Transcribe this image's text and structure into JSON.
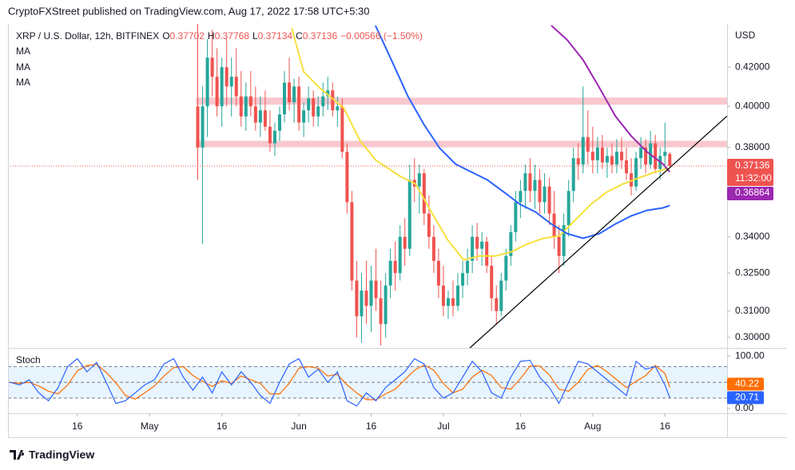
{
  "header": {
    "publisher": "CryptoFXStreet published on TradingView.com, Aug 17, 2022 17:58 UTC+5:30"
  },
  "footer": {
    "brand": "TradingView"
  },
  "chart_data": {
    "type": "candlestick",
    "title": "XRP / U.S. Dollar, 12h, BITFINEX",
    "quote": [
      {
        "label": "O",
        "value": "0.37702"
      },
      {
        "label": "H",
        "value": "0.37768"
      },
      {
        "label": "L",
        "value": "0.37134"
      },
      {
        "label": "C",
        "value": "0.37136"
      }
    ],
    "change": "−0.00566 (−1.50%)",
    "currency": "USD",
    "countdown": "11:32:00",
    "log_scale": true,
    "up_color": "#26a69a",
    "down_color": "#ef5350",
    "xlim": [
      1.6,
      150.9
    ],
    "xticks": [
      16,
      {
        "value": 31,
        "label": "May"
      },
      {
        "value": 46,
        "label": "16"
      },
      {
        "value": 62,
        "label": "Jun"
      },
      {
        "value": 77,
        "label": "16"
      },
      {
        "value": 92,
        "label": "Jul"
      },
      {
        "value": 108,
        "label": "16"
      },
      {
        "value": 123,
        "label": "Aug"
      },
      {
        "value": 138,
        "label": "16"
      }
    ],
    "ylim": [
      0.2961,
      0.4432
    ],
    "yticks": [
      {
        "value": 0.42,
        "label": "0.42000"
      },
      {
        "value": 0.4,
        "label": "0.40000"
      },
      {
        "value": 0.38,
        "label": "0.38000"
      },
      {
        "value": 0.34,
        "label": "0.34000"
      },
      {
        "value": 0.325,
        "label": "0.32500"
      },
      {
        "value": 0.31,
        "label": "0.31000"
      },
      {
        "value": 0.3,
        "label": "0.30000"
      }
    ],
    "x": [
      41,
      42,
      43,
      44,
      45,
      46,
      47,
      48,
      49,
      50,
      51,
      52,
      53,
      54,
      55,
      56,
      57,
      58,
      59,
      60,
      61,
      62,
      63,
      64,
      65,
      66,
      67,
      68,
      69,
      70,
      71,
      72,
      73,
      74,
      75,
      76,
      77,
      78,
      79,
      80,
      81,
      82,
      83,
      84,
      85,
      86,
      87,
      88,
      89,
      90,
      91,
      92,
      93,
      94,
      95,
      96,
      97,
      98,
      99,
      100,
      101,
      102,
      103,
      104,
      105,
      106,
      107,
      108,
      109,
      110,
      111,
      112,
      113,
      114,
      115,
      116,
      117,
      118,
      119,
      120,
      121,
      122,
      123,
      124,
      125,
      126,
      127,
      128,
      129,
      130,
      131,
      132,
      133,
      134,
      135,
      136,
      137,
      138,
      139
    ],
    "ohlc": [
      [
        0.4,
        0.445,
        0.365,
        0.38
      ],
      [
        0.38,
        0.41,
        0.337,
        0.4
      ],
      [
        0.4,
        0.435,
        0.385,
        0.425
      ],
      [
        0.425,
        0.44,
        0.405,
        0.415
      ],
      [
        0.415,
        0.43,
        0.395,
        0.4
      ],
      [
        0.4,
        0.425,
        0.39,
        0.42
      ],
      [
        0.42,
        0.435,
        0.4,
        0.41
      ],
      [
        0.41,
        0.425,
        0.395,
        0.415
      ],
      [
        0.415,
        0.43,
        0.4,
        0.405
      ],
      [
        0.405,
        0.418,
        0.39,
        0.395
      ],
      [
        0.395,
        0.412,
        0.388,
        0.405
      ],
      [
        0.405,
        0.418,
        0.395,
        0.4
      ],
      [
        0.4,
        0.41,
        0.388,
        0.392
      ],
      [
        0.392,
        0.405,
        0.385,
        0.398
      ],
      [
        0.398,
        0.408,
        0.388,
        0.39
      ],
      [
        0.39,
        0.398,
        0.378,
        0.382
      ],
      [
        0.382,
        0.392,
        0.376,
        0.388
      ],
      [
        0.388,
        0.4,
        0.383,
        0.396
      ],
      [
        0.396,
        0.418,
        0.392,
        0.412
      ],
      [
        0.412,
        0.425,
        0.398,
        0.402
      ],
      [
        0.402,
        0.414,
        0.392,
        0.41
      ],
      [
        0.41,
        0.415,
        0.388,
        0.392
      ],
      [
        0.392,
        0.402,
        0.385,
        0.398
      ],
      [
        0.398,
        0.41,
        0.392,
        0.404
      ],
      [
        0.404,
        0.408,
        0.39,
        0.395
      ],
      [
        0.395,
        0.405,
        0.39,
        0.4
      ],
      [
        0.4,
        0.412,
        0.395,
        0.405
      ],
      [
        0.405,
        0.415,
        0.398,
        0.408
      ],
      [
        0.408,
        0.412,
        0.395,
        0.398
      ],
      [
        0.398,
        0.405,
        0.39,
        0.4
      ],
      [
        0.4,
        0.404,
        0.375,
        0.378
      ],
      [
        0.378,
        0.382,
        0.35,
        0.355
      ],
      [
        0.355,
        0.36,
        0.318,
        0.322
      ],
      [
        0.322,
        0.33,
        0.3,
        0.308
      ],
      [
        0.308,
        0.325,
        0.298,
        0.318
      ],
      [
        0.318,
        0.33,
        0.305,
        0.312
      ],
      [
        0.312,
        0.328,
        0.302,
        0.322
      ],
      [
        0.322,
        0.335,
        0.31,
        0.315
      ],
      [
        0.315,
        0.322,
        0.297,
        0.305
      ],
      [
        0.305,
        0.325,
        0.3,
        0.32
      ],
      [
        0.32,
        0.335,
        0.315,
        0.33
      ],
      [
        0.33,
        0.338,
        0.318,
        0.325
      ],
      [
        0.325,
        0.345,
        0.322,
        0.34
      ],
      [
        0.34,
        0.348,
        0.328,
        0.335
      ],
      [
        0.335,
        0.372,
        0.332,
        0.365
      ],
      [
        0.365,
        0.375,
        0.355,
        0.362
      ],
      [
        0.362,
        0.372,
        0.35,
        0.368
      ],
      [
        0.368,
        0.37,
        0.345,
        0.35
      ],
      [
        0.35,
        0.358,
        0.335,
        0.34
      ],
      [
        0.34,
        0.345,
        0.325,
        0.33
      ],
      [
        0.33,
        0.335,
        0.315,
        0.32
      ],
      [
        0.32,
        0.328,
        0.308,
        0.312
      ],
      [
        0.312,
        0.318,
        0.307,
        0.315
      ],
      [
        0.315,
        0.322,
        0.308,
        0.312
      ],
      [
        0.312,
        0.325,
        0.31,
        0.32
      ],
      [
        0.32,
        0.33,
        0.315,
        0.325
      ],
      [
        0.325,
        0.335,
        0.32,
        0.33
      ],
      [
        0.33,
        0.345,
        0.325,
        0.34
      ],
      [
        0.34,
        0.346,
        0.33,
        0.335
      ],
      [
        0.335,
        0.342,
        0.328,
        0.338
      ],
      [
        0.338,
        0.34,
        0.325,
        0.328
      ],
      [
        0.328,
        0.332,
        0.31,
        0.315
      ],
      [
        0.315,
        0.32,
        0.305,
        0.31
      ],
      [
        0.31,
        0.325,
        0.308,
        0.322
      ],
      [
        0.322,
        0.335,
        0.318,
        0.332
      ],
      [
        0.332,
        0.345,
        0.328,
        0.342
      ],
      [
        0.342,
        0.36,
        0.338,
        0.355
      ],
      [
        0.355,
        0.365,
        0.348,
        0.36
      ],
      [
        0.36,
        0.372,
        0.352,
        0.368
      ],
      [
        0.368,
        0.375,
        0.355,
        0.36
      ],
      [
        0.36,
        0.372,
        0.352,
        0.365
      ],
      [
        0.365,
        0.37,
        0.35,
        0.355
      ],
      [
        0.355,
        0.368,
        0.35,
        0.362
      ],
      [
        0.362,
        0.366,
        0.345,
        0.35
      ],
      [
        0.35,
        0.36,
        0.335,
        0.34
      ],
      [
        0.34,
        0.345,
        0.325,
        0.332
      ],
      [
        0.332,
        0.35,
        0.328,
        0.345
      ],
      [
        0.345,
        0.365,
        0.34,
        0.36
      ],
      [
        0.36,
        0.38,
        0.355,
        0.375
      ],
      [
        0.375,
        0.382,
        0.365,
        0.372
      ],
      [
        0.372,
        0.41,
        0.368,
        0.385
      ],
      [
        0.385,
        0.398,
        0.372,
        0.378
      ],
      [
        0.378,
        0.39,
        0.368,
        0.374
      ],
      [
        0.374,
        0.385,
        0.368,
        0.38
      ],
      [
        0.38,
        0.386,
        0.37,
        0.373
      ],
      [
        0.373,
        0.38,
        0.366,
        0.376
      ],
      [
        0.376,
        0.382,
        0.368,
        0.372
      ],
      [
        0.372,
        0.384,
        0.368,
        0.378
      ],
      [
        0.378,
        0.385,
        0.37,
        0.374
      ],
      [
        0.374,
        0.38,
        0.365,
        0.368
      ],
      [
        0.368,
        0.375,
        0.358,
        0.362
      ],
      [
        0.362,
        0.378,
        0.36,
        0.375
      ],
      [
        0.375,
        0.385,
        0.37,
        0.38
      ],
      [
        0.38,
        0.384,
        0.368,
        0.372
      ],
      [
        0.372,
        0.388,
        0.37,
        0.382
      ],
      [
        0.382,
        0.386,
        0.368,
        0.37
      ],
      [
        0.37,
        0.38,
        0.365,
        0.376
      ],
      [
        0.376,
        0.392,
        0.37,
        0.378
      ],
      [
        0.37702,
        0.37768,
        0.37134,
        0.37136
      ]
    ],
    "series": [
      {
        "name": "MA",
        "color": "#f7e03c",
        "x": [
          60.5,
          63,
          66.3,
          71.3,
          74.6,
          77.9,
          82.9,
          86.2,
          89.5,
          92.9,
          96.2,
          99.5,
          102.8,
          106.1,
          109.4,
          112.8,
          116.1,
          119.4,
          122.7,
          126,
          129.3,
          132.7,
          136,
          139
        ],
        "values": [
          0.441,
          0.4175,
          0.4093,
          0.3992,
          0.3836,
          0.3742,
          0.3668,
          0.3632,
          0.3507,
          0.3387,
          0.3304,
          0.332,
          0.332,
          0.3337,
          0.337,
          0.3394,
          0.3404,
          0.3473,
          0.3542,
          0.3596,
          0.3632,
          0.366,
          0.3686,
          0.3704
        ]
      },
      {
        "name": "MA",
        "color": "#2962ff",
        "x": [
          77.9,
          81.2,
          84.6,
          87.9,
          91.2,
          94.5,
          97.8,
          101.1,
          104.5,
          107.8,
          111.1,
          114.4,
          117.7,
          121,
          124.4,
          127.7,
          131,
          134.3,
          137.6,
          139
        ],
        "values": [
          0.4423,
          0.4238,
          0.4052,
          0.3913,
          0.3798,
          0.3723,
          0.3686,
          0.365,
          0.3596,
          0.3542,
          0.3507,
          0.3455,
          0.3414,
          0.3394,
          0.3414,
          0.3455,
          0.349,
          0.3514,
          0.3525,
          0.3535
        ]
      },
      {
        "name": "MA",
        "color": "#9c27b0",
        "x": [
          114.4,
          117.7,
          121,
          124.4,
          127.7,
          131,
          134.3,
          137.6,
          139
        ],
        "values": [
          0.4423,
          0.4345,
          0.4238,
          0.4093,
          0.3952,
          0.3855,
          0.3779,
          0.3723,
          0.36864
        ]
      }
    ],
    "zones": [
      {
        "x0": 40.6,
        "low": 0.4008,
        "high": 0.4044
      },
      {
        "x0": 40.6,
        "low": 0.3801,
        "high": 0.3832
      }
    ],
    "zone_color": "#f5b5bd",
    "trendline": {
      "x": [
        97.5,
        150.9
      ],
      "values": [
        0.2961,
        0.3952
      ],
      "color": "#000000"
    },
    "stoch": {
      "name": "Stoch",
      "ylim": [
        -9,
        114
      ],
      "yticks": [
        {
          "value": 100,
          "label": "100.00"
        },
        {
          "value": 0,
          "label": "0.00"
        }
      ],
      "levels": [
        80,
        50,
        20
      ],
      "x": [
        2,
        4,
        6,
        8,
        10,
        12,
        14,
        16,
        18,
        20,
        22,
        24,
        26,
        28,
        30,
        32,
        34,
        36,
        38,
        40,
        42,
        44,
        46,
        48,
        50,
        52,
        54,
        56,
        58,
        60,
        62,
        64,
        66,
        68,
        70,
        72,
        74,
        76,
        78,
        80,
        82,
        84,
        86,
        88,
        90,
        92,
        94,
        96,
        98,
        100,
        102,
        104,
        106,
        108,
        110,
        112,
        114,
        116,
        118,
        120,
        122,
        124,
        126,
        128,
        130,
        132,
        134,
        136,
        138,
        139
      ],
      "k": {
        "color": "#2962ff",
        "values": [
          50,
          45,
          55,
          30,
          15,
          40,
          80,
          95,
          70,
          88,
          50,
          10,
          15,
          30,
          45,
          55,
          85,
          95,
          60,
          35,
          60,
          30,
          70,
          45,
          70,
          50,
          25,
          10,
          50,
          85,
          95,
          60,
          75,
          50,
          70,
          15,
          5,
          30,
          15,
          40,
          55,
          70,
          95,
          85,
          40,
          20,
          30,
          60,
          90,
          70,
          30,
          20,
          60,
          90,
          92,
          60,
          40,
          10,
          50,
          90,
          85,
          70,
          55,
          40,
          25,
          90,
          75,
          80,
          45,
          20.71
        ]
      },
      "d": {
        "color": "#ff6d00",
        "values": [
          50,
          48,
          50,
          43,
          33,
          28,
          45,
          72,
          82,
          84,
          69,
          49,
          25,
          18,
          30,
          43,
          62,
          78,
          80,
          63,
          52,
          42,
          53,
          48,
          62,
          55,
          48,
          28,
          28,
          48,
          77,
          80,
          77,
          62,
          65,
          45,
          30,
          17,
          17,
          28,
          37,
          55,
          73,
          83,
          73,
          48,
          30,
          37,
          60,
          73,
          63,
          40,
          37,
          57,
          81,
          81,
          64,
          37,
          33,
          50,
          75,
          82,
          70,
          55,
          40,
          52,
          63,
          82,
          67,
          40.22
        ]
      }
    }
  }
}
